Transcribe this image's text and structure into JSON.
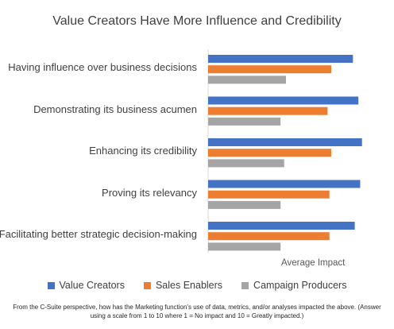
{
  "chart_data": {
    "type": "bar",
    "orientation": "horizontal",
    "title": "Value Creators Have More Influence and Credibility",
    "xlabel": "Average Impact",
    "ylabel": "",
    "categories": [
      "Having influence over business decisions",
      "Demonstrating its business acumen",
      "Enhancing its credibility",
      "Proving its relevancy",
      "Facilitating better strategic decision-making"
    ],
    "series": [
      {
        "name": "Value Creators",
        "color": "#4472C4",
        "values": [
          8.0,
          8.3,
          8.5,
          8.4,
          8.1
        ]
      },
      {
        "name": "Sales Enablers",
        "color": "#ED7D31",
        "values": [
          6.8,
          6.6,
          6.8,
          6.7,
          6.7
        ]
      },
      {
        "name": "Campaign Producers",
        "color": "#A5A5A5",
        "values": [
          4.3,
          4.0,
          4.2,
          4.0,
          4.0
        ]
      }
    ],
    "xlim": [
      0,
      8.6
    ],
    "grid": false,
    "legend": "bottom"
  },
  "footnote": "From the C-Suite perspective, how has the Marketing function's use of data, metrics, and/or analyses impacted the above. (Answer using a scale from 1 to 10 where 1 = No impact and 10 = Greatly impacted.)"
}
